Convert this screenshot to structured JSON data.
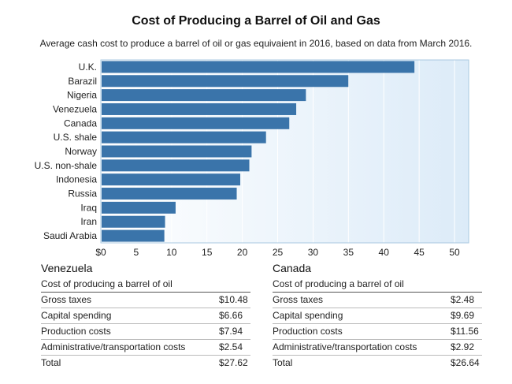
{
  "title": "Cost of Producing a Barrel of Oil and Gas",
  "subtitle": "Average cash cost to produce a barrel of oil or gas equivaient in 2016, based on data from March 2016.",
  "colors": {
    "bar": "#3a74aa",
    "plot_bg_start": "#ffffff",
    "plot_bg_end": "#dcebf8",
    "grid": "#ffffff",
    "frame": "#a9c8e0"
  },
  "chart_data": {
    "type": "bar",
    "orientation": "horizontal",
    "categories": [
      "U.K.",
      "Barazil",
      "Nigeria",
      "Venezuela",
      "Canada",
      "U.S. shale",
      "Norway",
      "U.S. non-shale",
      "Indonesia",
      "Russia",
      "Iraq",
      "Iran",
      "Saudi Arabia"
    ],
    "values": [
      44.33,
      34.99,
      28.99,
      27.62,
      26.64,
      23.35,
      21.31,
      20.99,
      19.71,
      19.21,
      10.57,
      9.08,
      8.98
    ],
    "xlim": [
      0,
      52
    ],
    "xticks": [
      0,
      5,
      10,
      15,
      20,
      25,
      30,
      35,
      40,
      45,
      50
    ],
    "xtick_labels": [
      "$0",
      "5",
      "10",
      "15",
      "20",
      "25",
      "30",
      "35",
      "40",
      "45",
      "50"
    ],
    "grid": true,
    "title": "Cost of Producing a Barrel of Oil and Gas",
    "xlabel": "",
    "ylabel": ""
  },
  "tables": [
    {
      "name": "Venezuela",
      "subtitle": "Cost of producing a barrel of oil",
      "rows": [
        {
          "label": "Gross taxes",
          "value": "$10.48"
        },
        {
          "label": "Capital spending",
          "value": "$6.66"
        },
        {
          "label": "Production costs",
          "value": "$7.94"
        },
        {
          "label": "Administrative/transportation costs",
          "value": "$2.54"
        }
      ],
      "total": {
        "label": "Total",
        "value": "$27.62"
      }
    },
    {
      "name": "Canada",
      "subtitle": "Cost of producing a barrel of oil",
      "rows": [
        {
          "label": "Gross taxes",
          "value": "$2.48"
        },
        {
          "label": "Capital spending",
          "value": "$9.69"
        },
        {
          "label": "Production costs",
          "value": "$11.56"
        },
        {
          "label": "Administrative/transportation costs",
          "value": "$2.92"
        }
      ],
      "total": {
        "label": "Total",
        "value": "$26.64"
      }
    }
  ]
}
